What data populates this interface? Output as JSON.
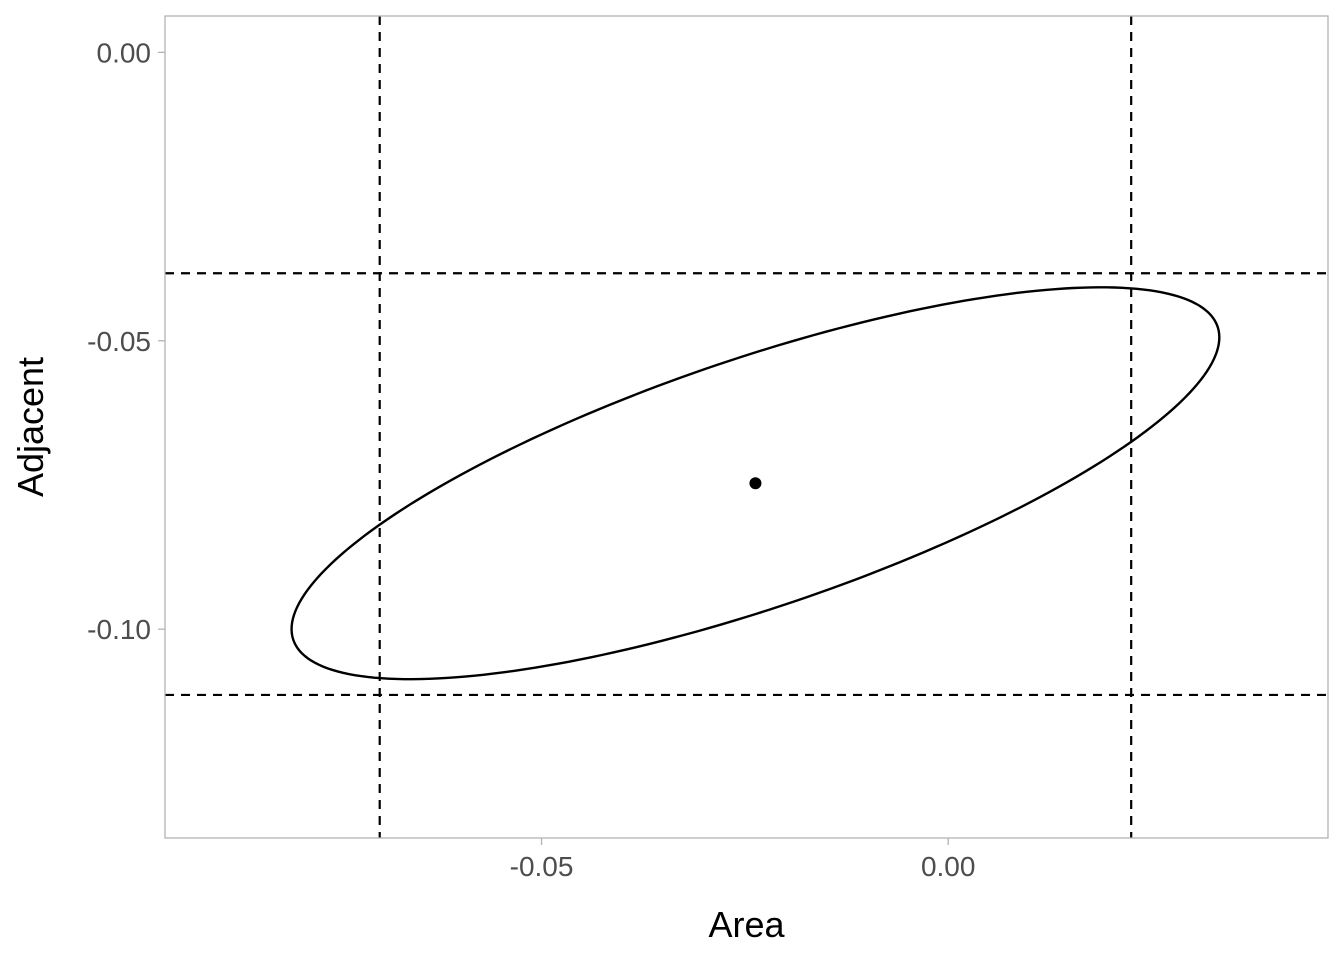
{
  "chart_data": {
    "type": "scatter",
    "title": "",
    "xlabel": "Area",
    "ylabel": "Adjacent",
    "xlim": [
      -0.0963,
      0.0467
    ],
    "ylim": [
      -0.1362,
      0.0063
    ],
    "x_ticks": [
      {
        "value": -0.05,
        "label": "-0.05"
      },
      {
        "value": 0.0,
        "label": "0.00"
      }
    ],
    "y_ticks": [
      {
        "value": 0.0,
        "label": "0.00"
      },
      {
        "value": -0.05,
        "label": "-0.05"
      },
      {
        "value": -0.1,
        "label": "-0.10"
      }
    ],
    "grid": false,
    "points": [
      {
        "x": -0.0237,
        "y": -0.0747
      }
    ],
    "ellipse": {
      "center": [
        -0.0237,
        -0.0747
      ],
      "semi_axis_major_x_component": 0.0567,
      "semi_axis_major_y_component": 0.0276,
      "semi_axis_minor_x_component": -0.0062,
      "semi_axis_minor_y_component": 0.0198
    },
    "reference_lines": {
      "vertical": [
        -0.0699,
        0.0225
      ],
      "horizontal": [
        -0.0383,
        -0.1114
      ],
      "style": "dashed"
    },
    "colors": {
      "line": "#000000",
      "panel_border": "#b3b3b3",
      "tick": "#b3b3b3",
      "tick_label": "#4d4d4d",
      "background": "#ffffff"
    }
  }
}
